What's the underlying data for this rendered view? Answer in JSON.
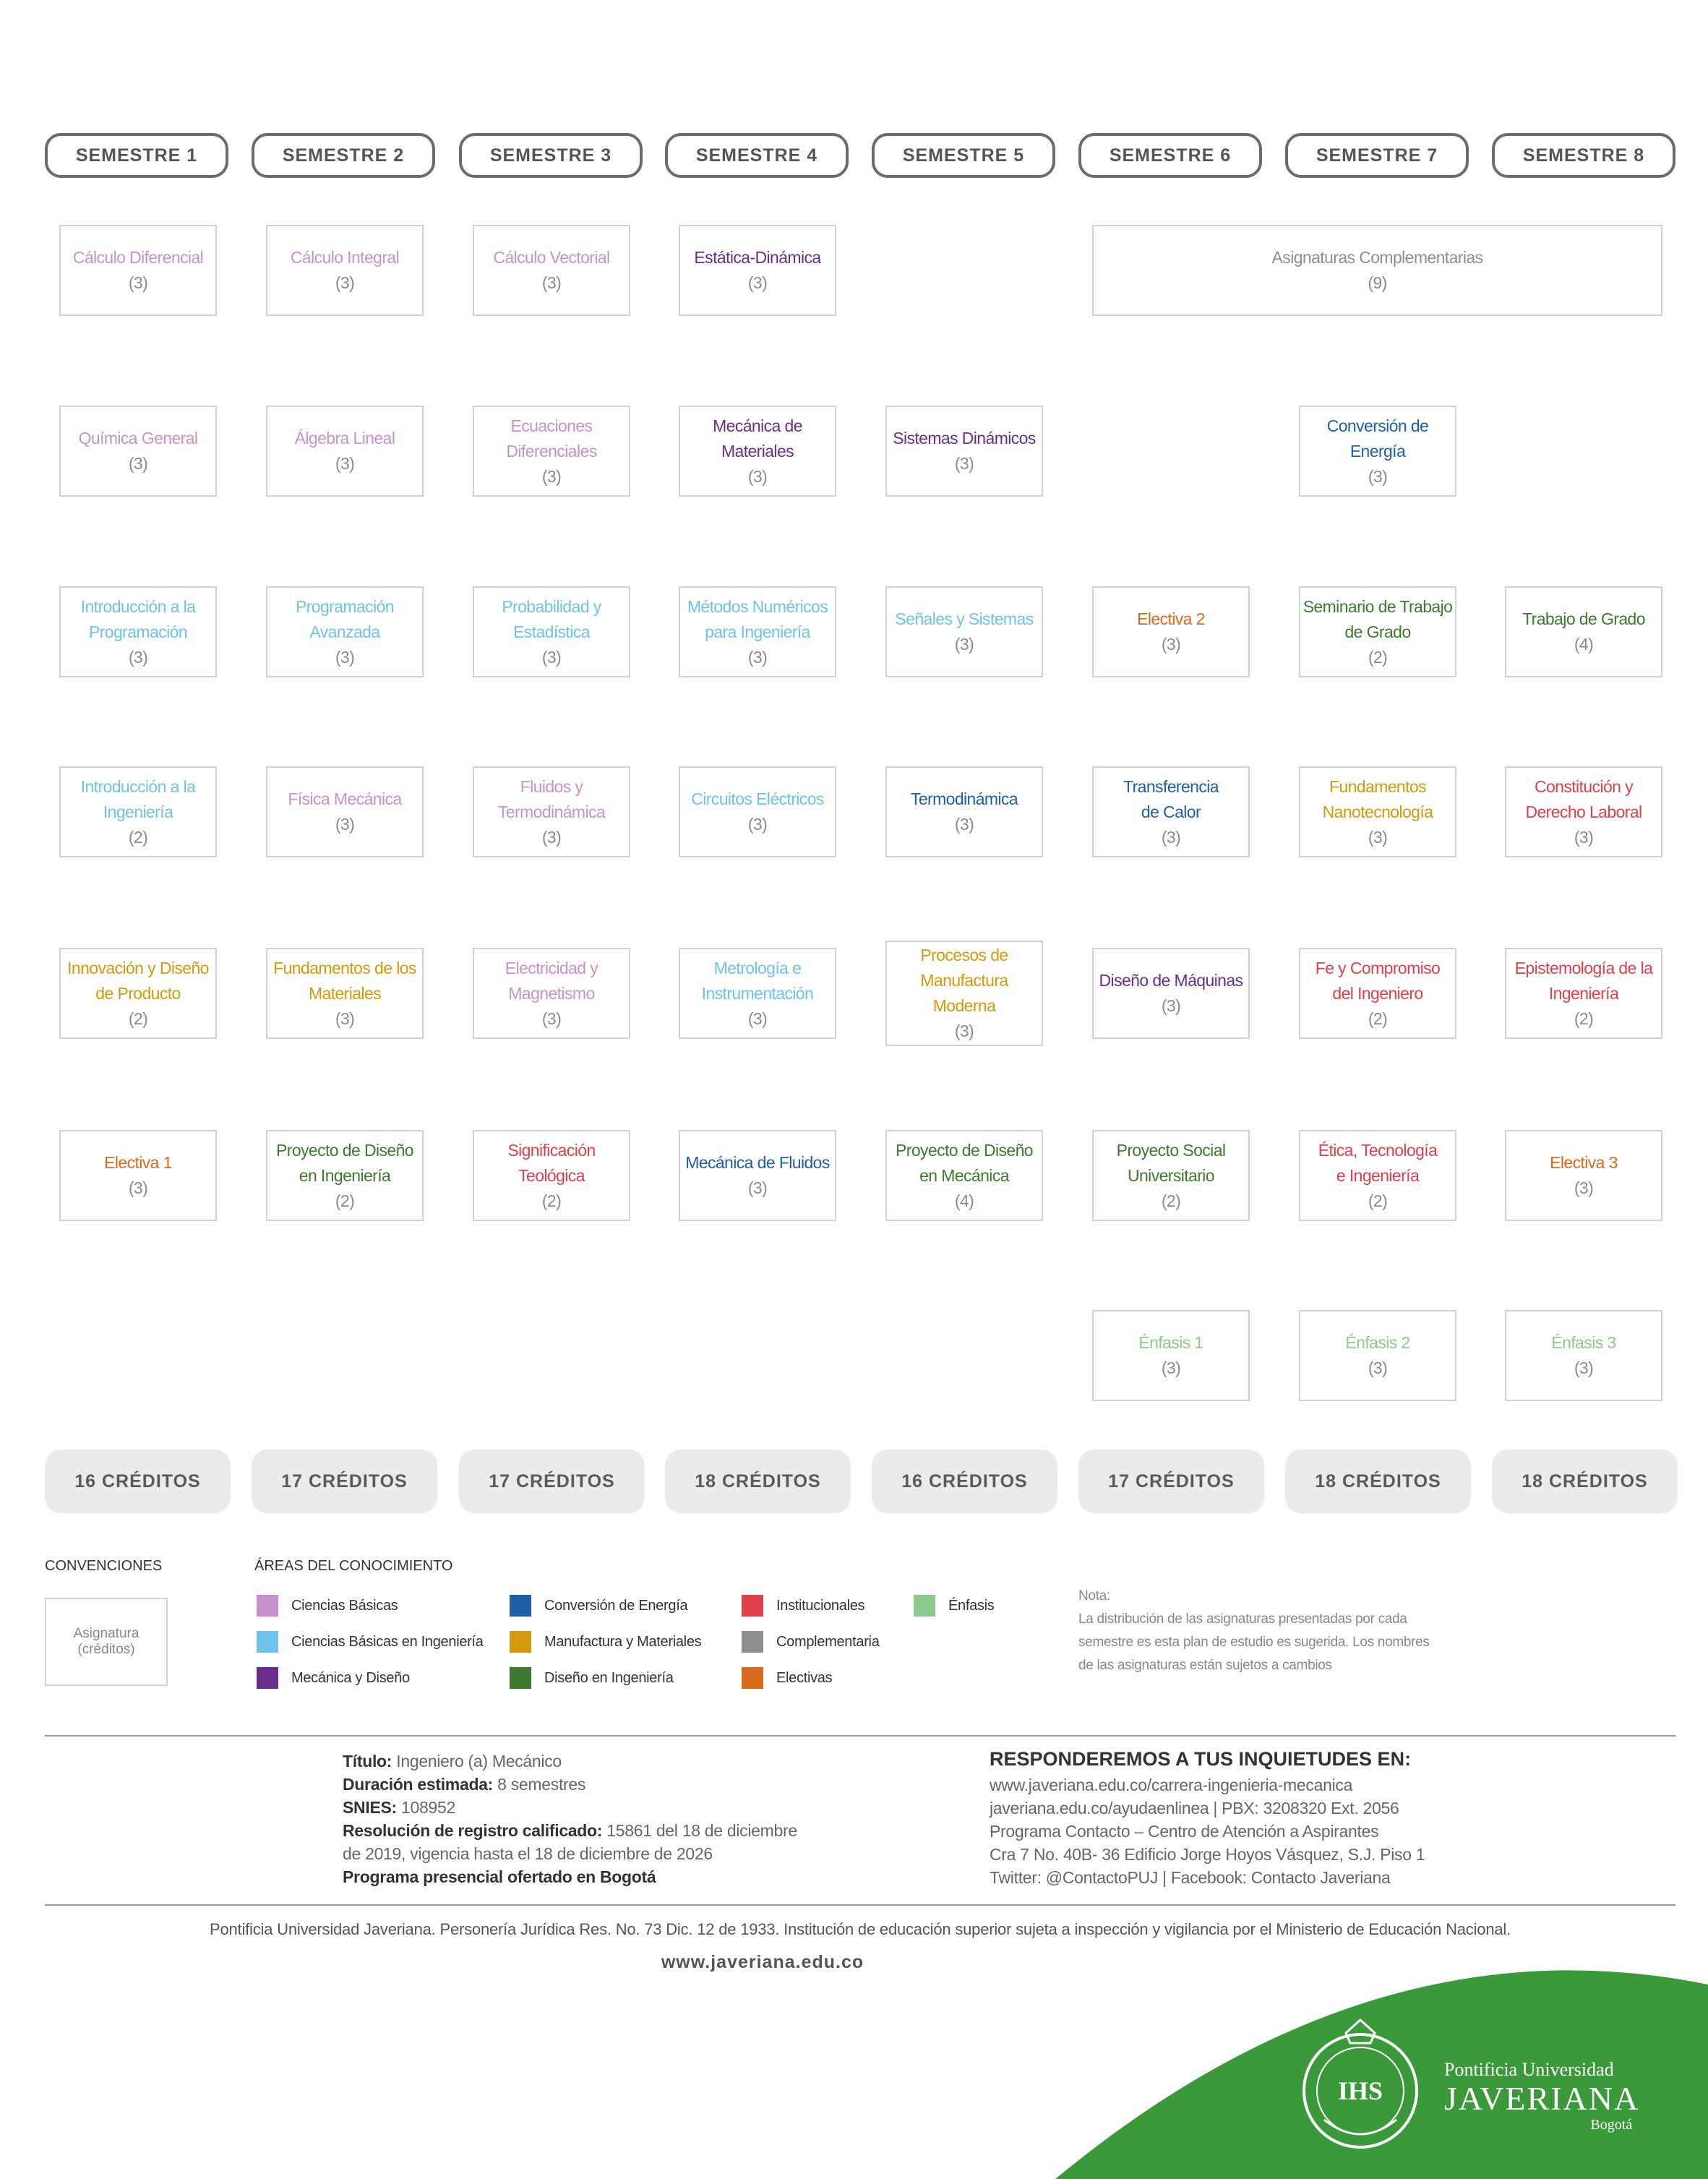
{
  "colors": {
    "ciencias_basicas": "#c792cc",
    "ciencias_basicas_ing": "#6ec3ea",
    "mecanica_diseno": "#6b2d8c",
    "conversion_energia": "#1f5fa8",
    "manufactura": "#d49a0a",
    "diseno_ingenieria": "#3d7a2e",
    "institucionales": "#e0404a",
    "complementaria": "#8e8e8e",
    "electivas": "#d86a1c",
    "enfasis": "#8cc98c",
    "brand_green": "#3a9a3a"
  },
  "semesters": [
    "SEMESTRE 1",
    "SEMESTRE 2",
    "SEMESTRE 3",
    "SEMESTRE 4",
    "SEMESTRE 5",
    "SEMESTRE 6",
    "SEMESTRE 7",
    "SEMESTRE 8"
  ],
  "courses": [
    {
      "col": 1,
      "row": 1,
      "lines": [
        "Cálculo Diferencial"
      ],
      "credits": "(3)",
      "area": "ciencias_basicas"
    },
    {
      "col": 2,
      "row": 1,
      "lines": [
        "Cálculo Integral"
      ],
      "credits": "(3)",
      "area": "ciencias_basicas"
    },
    {
      "col": 3,
      "row": 1,
      "lines": [
        "Cálculo Vectorial"
      ],
      "credits": "(3)",
      "area": "ciencias_basicas"
    },
    {
      "col": 4,
      "row": 1,
      "lines": [
        "Estática-Dinámica"
      ],
      "credits": "(3)",
      "area": "mecanica_diseno"
    },
    {
      "col": 6,
      "row": 1,
      "span": 2,
      "lines": [
        "Asignaturas Complementarias"
      ],
      "credits": "(9)",
      "area": "complementaria"
    },
    {
      "col": 1,
      "row": 2,
      "lines": [
        "Química General"
      ],
      "credits": "(3)",
      "area": "ciencias_basicas"
    },
    {
      "col": 2,
      "row": 2,
      "lines": [
        "Álgebra Lineal"
      ],
      "credits": "(3)",
      "area": "ciencias_basicas"
    },
    {
      "col": 3,
      "row": 2,
      "lines": [
        "Ecuaciones",
        "Diferenciales"
      ],
      "credits": "(3)",
      "area": "ciencias_basicas"
    },
    {
      "col": 4,
      "row": 2,
      "lines": [
        "Mecánica de",
        "Materiales"
      ],
      "credits": "(3)",
      "area": "mecanica_diseno"
    },
    {
      "col": 5,
      "row": 2,
      "lines": [
        "Sistemas Dinámicos"
      ],
      "credits": "(3)",
      "area": "mecanica_diseno"
    },
    {
      "col": 7,
      "row": 2,
      "lines": [
        "Conversión de Energía"
      ],
      "credits": "(3)",
      "area": "conversion_energia"
    },
    {
      "col": 1,
      "row": 3,
      "lines": [
        "Introducción a la",
        "Programación"
      ],
      "credits": "(3)",
      "area": "ciencias_basicas_ing"
    },
    {
      "col": 2,
      "row": 3,
      "lines": [
        "Programación",
        "Avanzada"
      ],
      "credits": "(3)",
      "area": "ciencias_basicas_ing"
    },
    {
      "col": 3,
      "row": 3,
      "lines": [
        "Probabilidad y",
        "Estadística"
      ],
      "credits": "(3)",
      "area": "ciencias_basicas_ing"
    },
    {
      "col": 4,
      "row": 3,
      "lines": [
        "Métodos Numéricos",
        "para Ingeniería"
      ],
      "credits": "(3)",
      "area": "ciencias_basicas_ing"
    },
    {
      "col": 5,
      "row": 3,
      "lines": [
        "Señales y Sistemas"
      ],
      "credits": "(3)",
      "area": "ciencias_basicas_ing"
    },
    {
      "col": 6,
      "row": 3,
      "lines": [
        "Electiva 2"
      ],
      "credits": "(3)",
      "area": "electivas"
    },
    {
      "col": 7,
      "row": 3,
      "lines": [
        "Seminario de Trabajo",
        "de Grado"
      ],
      "credits": "(2)",
      "area": "diseno_ingenieria"
    },
    {
      "col": 8,
      "row": 3,
      "lines": [
        "Trabajo de Grado"
      ],
      "credits": "(4)",
      "area": "diseno_ingenieria"
    },
    {
      "col": 1,
      "row": 4,
      "lines": [
        "Introducción a la",
        "Ingeniería"
      ],
      "credits": "(2)",
      "area": "ciencias_basicas_ing"
    },
    {
      "col": 2,
      "row": 4,
      "lines": [
        "Física Mecánica"
      ],
      "credits": "(3)",
      "area": "ciencias_basicas"
    },
    {
      "col": 3,
      "row": 4,
      "lines": [
        "Fluidos y",
        "Termodinámica"
      ],
      "credits": "(3)",
      "area": "ciencias_basicas"
    },
    {
      "col": 4,
      "row": 4,
      "lines": [
        "Circuitos Eléctricos"
      ],
      "credits": "(3)",
      "area": "ciencias_basicas_ing"
    },
    {
      "col": 5,
      "row": 4,
      "lines": [
        "Termodinámica"
      ],
      "credits": "(3)",
      "area": "conversion_energia"
    },
    {
      "col": 6,
      "row": 4,
      "lines": [
        "Transferencia",
        "de Calor"
      ],
      "credits": "(3)",
      "area": "conversion_energia"
    },
    {
      "col": 7,
      "row": 4,
      "lines": [
        "Fundamentos",
        "Nanotecnología"
      ],
      "credits": "(3)",
      "area": "manufactura"
    },
    {
      "col": 8,
      "row": 4,
      "lines": [
        "Constitución y",
        "Derecho Laboral"
      ],
      "credits": "(3)",
      "area": "institucionales"
    },
    {
      "col": 1,
      "row": 5,
      "lines": [
        "Innovación y Diseño",
        "de Producto"
      ],
      "credits": "(2)",
      "area": "manufactura"
    },
    {
      "col": 2,
      "row": 5,
      "lines": [
        "Fundamentos de los",
        "Materiales"
      ],
      "credits": "(3)",
      "area": "manufactura"
    },
    {
      "col": 3,
      "row": 5,
      "lines": [
        "Electricidad y",
        "Magnetismo"
      ],
      "credits": "(3)",
      "area": "ciencias_basicas"
    },
    {
      "col": 4,
      "row": 5,
      "lines": [
        "Metrología e",
        "Instrumentación"
      ],
      "credits": "(3)",
      "area": "ciencias_basicas_ing"
    },
    {
      "col": 5,
      "row": 5,
      "tall": true,
      "lines": [
        "Procesos de",
        "Manufactura",
        "Moderna"
      ],
      "credits": "(3)",
      "area": "manufactura"
    },
    {
      "col": 6,
      "row": 5,
      "lines": [
        "Diseño de Máquinas"
      ],
      "credits": "(3)",
      "area": "mecanica_diseno"
    },
    {
      "col": 7,
      "row": 5,
      "lines": [
        "Fe y Compromiso",
        "del Ingeniero"
      ],
      "credits": "(2)",
      "area": "institucionales"
    },
    {
      "col": 8,
      "row": 5,
      "lines": [
        "Epistemología de la",
        "Ingeniería"
      ],
      "credits": "(2)",
      "area": "institucionales"
    },
    {
      "col": 1,
      "row": 6,
      "lines": [
        "Electiva 1"
      ],
      "credits": "(3)",
      "area": "electivas"
    },
    {
      "col": 2,
      "row": 6,
      "lines": [
        "Proyecto de Diseño",
        "en Ingeniería"
      ],
      "credits": "(2)",
      "area": "diseno_ingenieria"
    },
    {
      "col": 3,
      "row": 6,
      "lines": [
        "Significación",
        "Teológica"
      ],
      "credits": "(2)",
      "area": "institucionales"
    },
    {
      "col": 4,
      "row": 6,
      "lines": [
        "Mecánica de Fluidos"
      ],
      "credits": "(3)",
      "area": "conversion_energia"
    },
    {
      "col": 5,
      "row": 6,
      "lines": [
        "Proyecto de Diseño",
        "en Mecánica"
      ],
      "credits": "(4)",
      "area": "diseno_ingenieria"
    },
    {
      "col": 6,
      "row": 6,
      "lines": [
        "Proyecto Social",
        "Universitario"
      ],
      "credits": "(2)",
      "area": "diseno_ingenieria"
    },
    {
      "col": 7,
      "row": 6,
      "lines": [
        "Ética, Tecnología",
        "e Ingeniería"
      ],
      "credits": "(2)",
      "area": "institucionales"
    },
    {
      "col": 8,
      "row": 6,
      "lines": [
        "Electiva 3"
      ],
      "credits": "(3)",
      "area": "electivas"
    },
    {
      "col": 6,
      "row": 7,
      "lines": [
        "Énfasis 1"
      ],
      "credits": "(3)",
      "area": "enfasis"
    },
    {
      "col": 7,
      "row": 7,
      "lines": [
        "Énfasis 2"
      ],
      "credits": "(3)",
      "area": "enfasis"
    },
    {
      "col": 8,
      "row": 7,
      "lines": [
        "Énfasis 3"
      ],
      "credits": "(3)",
      "area": "enfasis"
    }
  ],
  "credits_totals": [
    "16 CRÉDITOS",
    "17 CRÉDITOS",
    "17 CRÉDITOS",
    "18 CRÉDITOS",
    "16 CRÉDITOS",
    "17 CRÉDITOS",
    "18 CRÉDITOS",
    "18 CRÉDITOS"
  ],
  "legend": {
    "conventions_title": "CONVENCIONES",
    "conventions_box": [
      "Asignatura",
      "(créditos)"
    ],
    "areas_title": "ÁREAS DEL CONOCIMIENTO",
    "areas": [
      {
        "label": "Ciencias Básicas",
        "color": "ciencias_basicas"
      },
      {
        "label": "Ciencias Básicas en Ingeniería",
        "color": "ciencias_basicas_ing"
      },
      {
        "label": "Mecánica y Diseño",
        "color": "mecanica_diseno"
      },
      {
        "label": "Conversión de Energía",
        "color": "conversion_energia"
      },
      {
        "label": "Manufactura y Materiales",
        "color": "manufactura"
      },
      {
        "label": "Diseño en Ingeniería",
        "color": "diseno_ingenieria"
      },
      {
        "label": "Institucionales",
        "color": "institucionales"
      },
      {
        "label": "Complementaria",
        "color": "complementaria"
      },
      {
        "label": "Electivas",
        "color": "electivas"
      },
      {
        "label": "Énfasis",
        "color": "enfasis"
      }
    ],
    "note": [
      "Nota:",
      "La distribución de las asignaturas presentadas por cada",
      "semestre es esta plan de estudio es sugerida. Los nombres",
      "de las asignaturas están sujetos a cambios"
    ]
  },
  "program": {
    "title_label": "Título:",
    "title_value": "Ingeniero (a) Mecánico",
    "duration_label": "Duración estimada:",
    "duration_value": "8 semestres",
    "snies_label": "SNIES:",
    "snies_value": "108952",
    "resolution_label": "Resolución de registro calificado:",
    "resolution_value": "15861 del 18 de diciembre",
    "resolution_value2": "de 2019, vigencia hasta el 18 de diciembre de 2026",
    "modality": "Programa presencial ofertado en Bogotá"
  },
  "contact": {
    "heading": "RESPONDEREMOS A TUS INQUIETUDES EN:",
    "lines": [
      "www.javeriana.edu.co/carrera-ingenieria-mecanica",
      "javeriana.edu.co/ayudaenlinea | PBX: 3208320 Ext. 2056",
      "Programa Contacto – Centro de Atención a Aspirantes",
      "Cra 7 No. 40B- 36 Edificio Jorge Hoyos Vásquez, S.J. Piso 1",
      "Twitter: @ContactoPUJ | Facebook: Contacto Javeriana"
    ]
  },
  "footer": {
    "legal": "Pontificia Universidad Javeriana. Personería Jurídica Res. No. 73 Dic. 12 de 1933. Institución de educación superior sujeta a inspección y vigilancia por el Ministerio de Educación Nacional.",
    "website": "www.javeriana.edu.co"
  },
  "brand": {
    "line1": "Pontificia Universidad",
    "line2": "JAVERIANA",
    "line3": "Bogotá",
    "seal_text": "IHS"
  }
}
